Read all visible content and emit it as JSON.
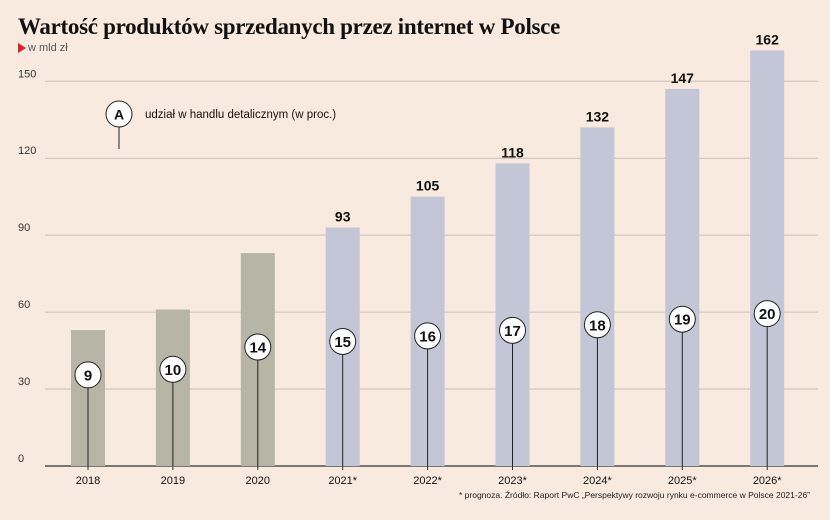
{
  "header": {
    "title": "Wartość produktów sprzedanych przez internet w Polsce",
    "unit": "w mld zł"
  },
  "legend": {
    "marker_letter": "A",
    "label": "udział w handlu detalicznym (w proc.)"
  },
  "footnote": "* prognoza. Źródło: Raport PwC „Perspektywy rozwoju rynku e-commerce w Polsce 2021-26”",
  "chart_data": {
    "type": "bar",
    "title": "Wartość produktów sprzedanych przez internet w Polsce",
    "ylabel": "w mld zł",
    "categories": [
      "2018",
      "2019",
      "2020",
      "2021*",
      "2022*",
      "2023*",
      "2024*",
      "2025*",
      "2026*"
    ],
    "values": [
      53,
      61,
      83,
      93,
      105,
      118,
      132,
      147,
      162
    ],
    "value_labels": [
      "",
      "",
      "",
      "93",
      "105",
      "118",
      "132",
      "147",
      "162"
    ],
    "retail_share_pct": [
      9,
      10,
      14,
      15,
      16,
      17,
      18,
      19,
      20
    ],
    "forecast": [
      false,
      false,
      false,
      true,
      true,
      true,
      true,
      true,
      true
    ],
    "ylim": [
      0,
      165
    ],
    "yticks": [
      0,
      30,
      60,
      90,
      120,
      150
    ],
    "grid": true,
    "colors": {
      "actual": "#b6b5a6",
      "forecast": "#c2c6d7",
      "grid": "#c9bfb6",
      "axis": "#333333",
      "marker_accent": "#e0202a"
    }
  }
}
